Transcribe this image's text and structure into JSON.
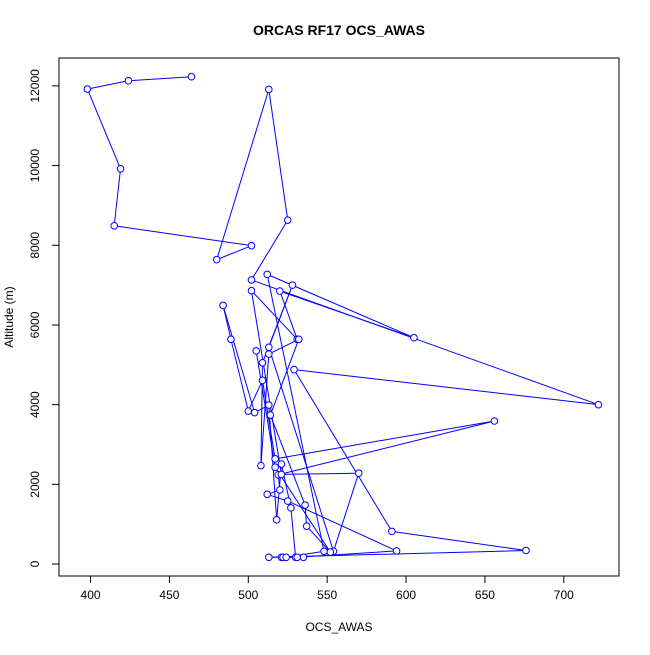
{
  "chart_data": {
    "type": "line",
    "title": "ORCAS RF17 OCS_AWAS",
    "xlabel": "OCS_AWAS",
    "ylabel": "Altitude (m)",
    "xlim": [
      380,
      735
    ],
    "ylim": [
      -300,
      12700
    ],
    "x_ticks": [
      400,
      450,
      500,
      550,
      600,
      650,
      700
    ],
    "y_ticks": [
      0,
      2000,
      4000,
      6000,
      8000,
      10000,
      12000
    ],
    "marker": "open-circle",
    "grid": false,
    "legend": "none",
    "series": [
      {
        "color": "#0000ff",
        "points": [
          [
            464,
            12230
          ],
          [
            424,
            12130
          ],
          [
            398,
            11920
          ],
          [
            419,
            9920
          ],
          [
            415,
            8490
          ],
          [
            502,
            7990
          ],
          [
            480,
            7640
          ],
          [
            513,
            11910
          ],
          [
            525,
            8630
          ],
          [
            502,
            7130
          ],
          [
            722,
            4000
          ],
          [
            529,
            4880
          ],
          [
            591,
            820
          ],
          [
            676,
            340
          ],
          [
            513,
            170
          ],
          [
            521,
            170
          ],
          [
            530,
            170
          ],
          [
            527,
            1410
          ],
          [
            521,
            2510
          ],
          [
            518,
            1110
          ],
          [
            513,
            3990
          ],
          [
            504,
            3800
          ],
          [
            484,
            6490
          ],
          [
            489,
            5640
          ],
          [
            500,
            3840
          ],
          [
            509,
            4610
          ],
          [
            517,
            2640
          ],
          [
            656,
            3590
          ],
          [
            519,
            2240
          ],
          [
            520,
            1860
          ],
          [
            512,
            1750
          ],
          [
            525,
            1580
          ],
          [
            594,
            330
          ],
          [
            531,
            170
          ],
          [
            535,
            170
          ],
          [
            522,
            170
          ],
          [
            524,
            170
          ],
          [
            548,
            320
          ],
          [
            512,
            7270
          ],
          [
            605,
            5680
          ],
          [
            520,
            6850
          ],
          [
            531,
            5640
          ],
          [
            502,
            6860
          ],
          [
            521,
            2250
          ],
          [
            570,
            2280
          ],
          [
            554,
            320
          ],
          [
            513,
            5440
          ],
          [
            528,
            7000
          ],
          [
            509,
            5050
          ],
          [
            508,
            2470
          ],
          [
            513,
            5270
          ],
          [
            532,
            5640
          ],
          [
            514,
            3740
          ],
          [
            536,
            1480
          ],
          [
            537,
            950
          ],
          [
            552,
            300
          ],
          [
            517,
            2430
          ],
          [
            505,
            5350
          ]
        ]
      }
    ]
  }
}
